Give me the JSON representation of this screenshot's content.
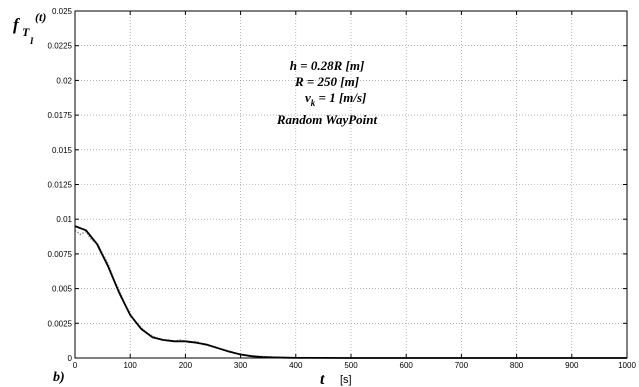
{
  "chart_data": {
    "type": "line",
    "panel_label": "b)",
    "ylabel": {
      "main": "f",
      "sub1": "T",
      "sub2": "I",
      "arg": "(t)"
    },
    "xlabel": {
      "var": "t",
      "unit": "[s]"
    },
    "xlim": [
      0,
      1000
    ],
    "ylim": [
      0,
      0.025
    ],
    "xticks": [
      "0",
      "100",
      "200",
      "300",
      "400",
      "500",
      "600",
      "700",
      "800",
      "900",
      "1000"
    ],
    "yticks": [
      "0",
      "0.0025",
      "0.005",
      "0.0075",
      "0.01",
      "0.0125",
      "0.015",
      "0.0175",
      "0.02",
      "0.0225",
      "0.025"
    ],
    "grid": true,
    "annotations": {
      "h": "h = 0.28R [m]",
      "R": "R = 250 [m]",
      "v_main": "v",
      "v_sub": "k",
      "v_rest": " = 1 [m/s]",
      "model": "Random WayPoint"
    },
    "series": [
      {
        "style": "solid-fit",
        "color": "#000000",
        "x": [
          0,
          20,
          40,
          60,
          80,
          100,
          120,
          140,
          160,
          180,
          200,
          220,
          240,
          260,
          280,
          300,
          320,
          340,
          360,
          380,
          400,
          450,
          500,
          600,
          700,
          800,
          900,
          1000
        ],
        "y": [
          0.0095,
          0.0092,
          0.0082,
          0.0066,
          0.0047,
          0.0031,
          0.0021,
          0.0015,
          0.0013,
          0.0012,
          0.0012,
          0.0011,
          0.00095,
          0.0007,
          0.00045,
          0.00025,
          0.00013,
          7e-05,
          4e-05,
          2e-05,
          1e-05,
          5e-06,
          0,
          0,
          0,
          0,
          0,
          0
        ]
      },
      {
        "style": "dotted-samples",
        "color": "#999999",
        "x": [
          0,
          10,
          20,
          30,
          40,
          50,
          60,
          70,
          80,
          90,
          100,
          110,
          120,
          130,
          140,
          150,
          160,
          170,
          180,
          190,
          200,
          210,
          220,
          230,
          240,
          250,
          260,
          270,
          280,
          290,
          300,
          320,
          340,
          360,
          380,
          400,
          420,
          450,
          500,
          550,
          600,
          650,
          700,
          750,
          800,
          850,
          900,
          950,
          1000
        ],
        "y": [
          0.0092,
          0.0089,
          0.0091,
          0.0085,
          0.0083,
          0.0075,
          0.0068,
          0.0057,
          0.0049,
          0.0039,
          0.0032,
          0.0026,
          0.0022,
          0.0018,
          0.0016,
          0.0014,
          0.0013,
          0.0013,
          0.0012,
          0.0013,
          0.0012,
          0.0011,
          0.0012,
          0.001,
          0.0009,
          0.0008,
          0.0007,
          0.0006,
          0.0005,
          0.00035,
          0.00028,
          0.00015,
          0.0001,
          5e-05,
          4e-05,
          2e-05,
          2e-05,
          1e-05,
          1e-05,
          0,
          0,
          0,
          0,
          0,
          0,
          0,
          0,
          0,
          0
        ]
      }
    ]
  }
}
